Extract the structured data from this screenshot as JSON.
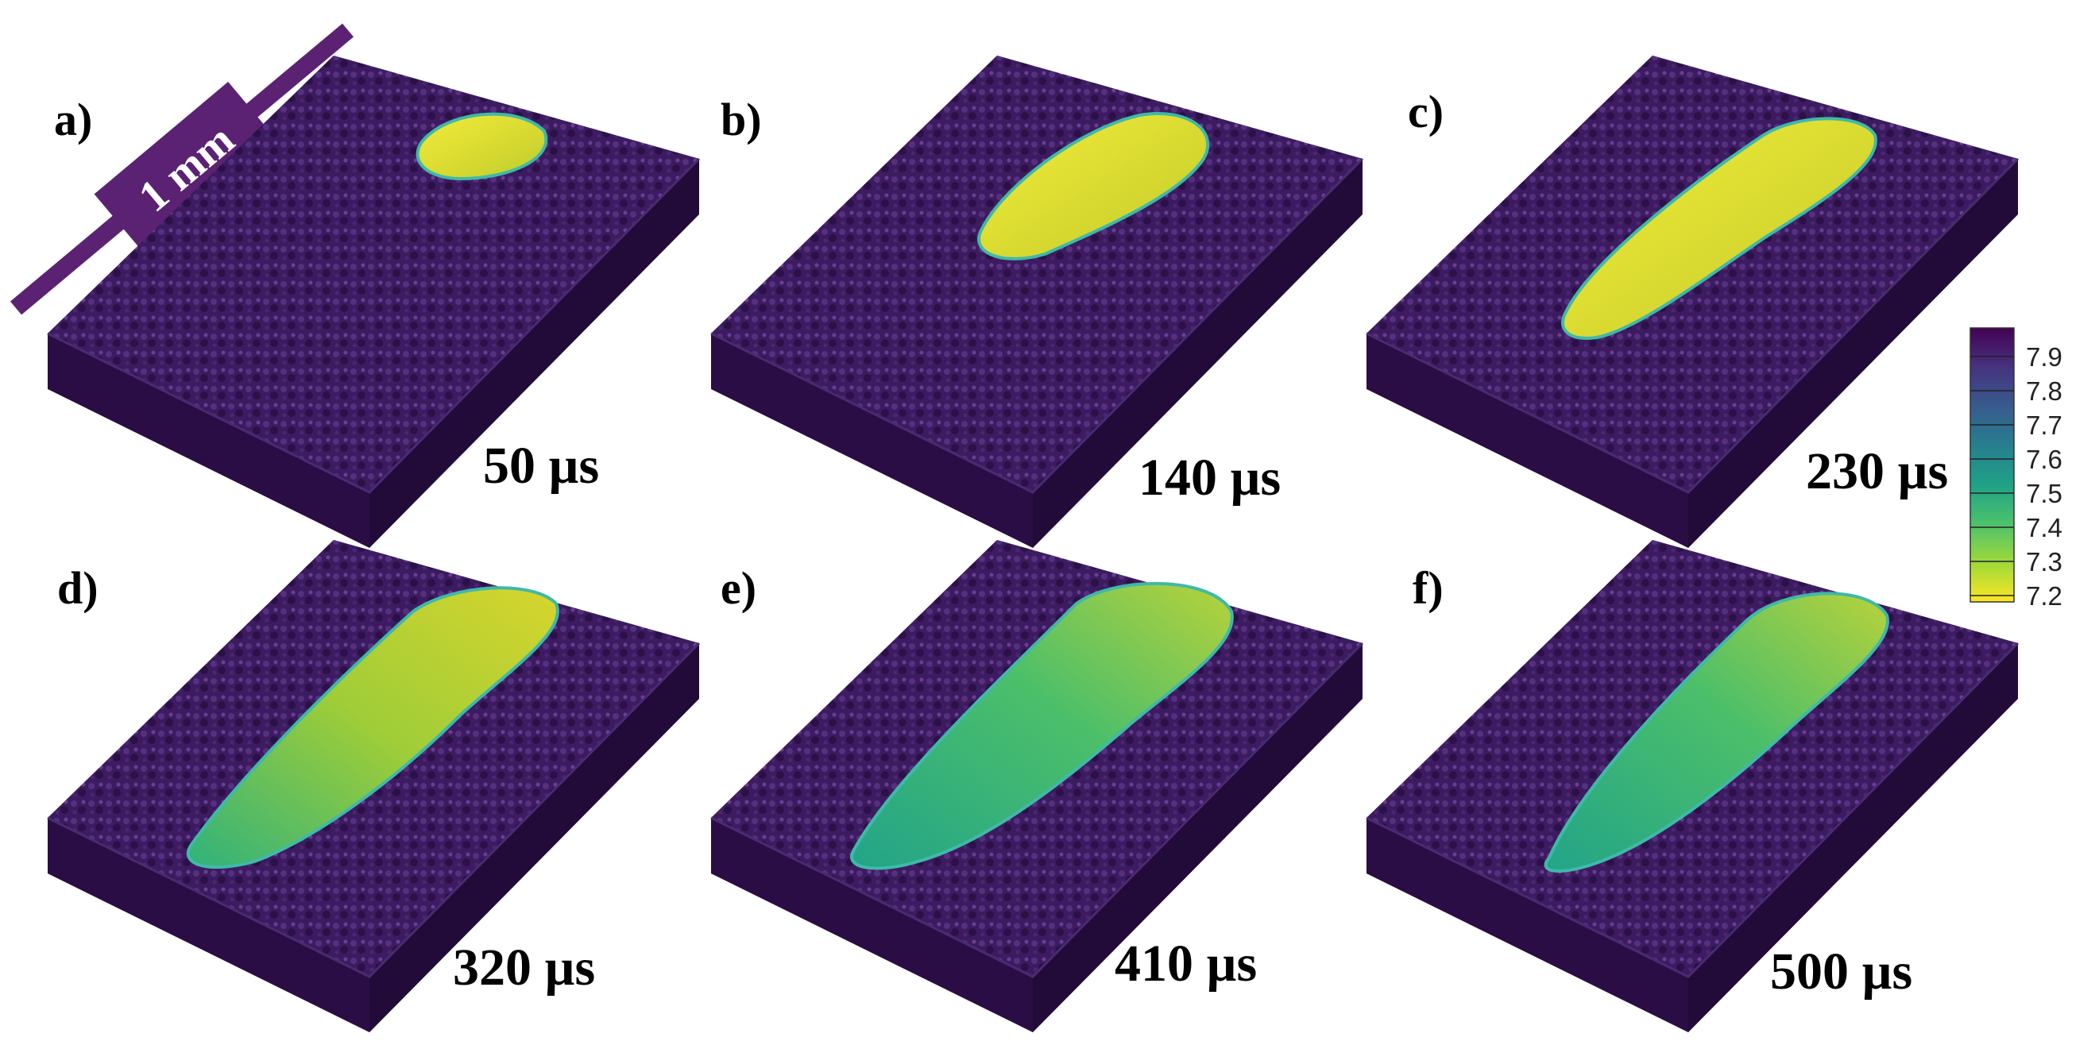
{
  "scale_bar": {
    "label": "1 mm"
  },
  "panels": [
    {
      "letter": "a)",
      "time": "50 µs"
    },
    {
      "letter": "b)",
      "time": "140 µs"
    },
    {
      "letter": "c)",
      "time": "230 µs"
    },
    {
      "letter": "d)",
      "time": "320 µs"
    },
    {
      "letter": "e)",
      "time": "410 µs"
    },
    {
      "letter": "f)",
      "time": "500 µs"
    }
  ],
  "colorbar": {
    "ticks": [
      "7.9",
      "7.8",
      "7.7",
      "7.6",
      "7.5",
      "7.4",
      "7.3",
      "7.2"
    ],
    "colors": [
      "#440154",
      "#46327e",
      "#365c8d",
      "#277f8e",
      "#1fa187",
      "#4ac16d",
      "#a0da39",
      "#fde725"
    ]
  },
  "colors": {
    "powder": "#3b1a5e",
    "powder_highlight": "#5a3588",
    "block_side": "#2a0f45",
    "melt_yellow": "#e4e22a",
    "melt_green": "#2eb57a"
  }
}
